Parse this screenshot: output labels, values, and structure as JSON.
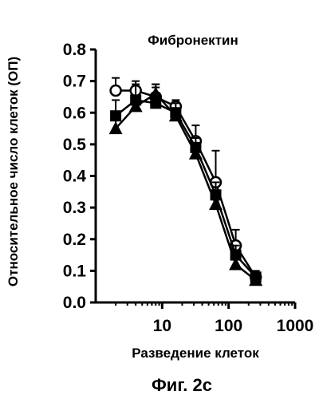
{
  "chart_data": {
    "type": "line",
    "title": "Фибронектин",
    "xlabel": "Разведение клеток",
    "ylabel": "Относительное число клеток (ОП)",
    "caption": "Фиг. 2с",
    "x_scale": "log",
    "xlim": [
      1,
      1000
    ],
    "ylim": [
      0,
      0.8
    ],
    "x_ticks": [
      10,
      100,
      1000
    ],
    "x_tick_labels": [
      "10",
      "100",
      "1000"
    ],
    "y_ticks": [
      0.0,
      0.1,
      0.2,
      0.3,
      0.4,
      0.5,
      0.6,
      0.7,
      0.8
    ],
    "y_tick_labels": [
      "0.0",
      "0.1",
      "0.2",
      "0.3",
      "0.4",
      "0.5",
      "0.6",
      "0.7",
      "0.8"
    ],
    "grid": false,
    "legend": "none",
    "series": [
      {
        "marker": "open-circle",
        "x": [
          2,
          4,
          8,
          16,
          32,
          64,
          128,
          256
        ],
        "y": [
          0.67,
          0.67,
          0.65,
          0.62,
          0.51,
          0.38,
          0.18,
          0.08
        ],
        "err": [
          0.04,
          0.03,
          0.04,
          0.02,
          0.05,
          0.1,
          0.05,
          0.02
        ]
      },
      {
        "marker": "filled-square",
        "x": [
          2,
          4,
          8,
          16,
          32,
          64,
          128,
          256
        ],
        "y": [
          0.59,
          0.64,
          0.63,
          0.6,
          0.49,
          0.34,
          0.15,
          0.08
        ],
        "err": [
          0.05,
          0.05,
          0.05,
          0.03,
          0.03,
          0.04,
          0.03,
          0.01
        ]
      },
      {
        "marker": "filled-triangle",
        "x": [
          2,
          4,
          8,
          16,
          32,
          64,
          128,
          256
        ],
        "y": [
          0.55,
          0.62,
          0.66,
          0.59,
          0.47,
          0.31,
          0.12,
          0.07
        ],
        "err": [
          0.03,
          0.03,
          0.03,
          0.02,
          0.03,
          0.03,
          0.02,
          0.01
        ]
      }
    ]
  }
}
